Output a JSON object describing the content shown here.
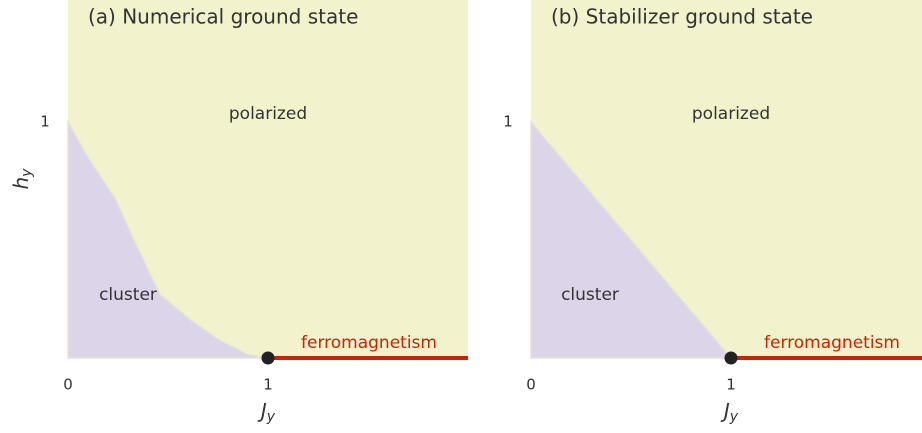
{
  "chart_data": [
    {
      "type": "phase",
      "title": "(a) Numerical ground state",
      "xlabel": "J",
      "xlabel_subscript": "y",
      "ylabel": "h",
      "ylabel_subscript": "y",
      "xlim": [
        0,
        2
      ],
      "ylim": [
        0,
        1.517
      ],
      "xticks": [
        0,
        1
      ],
      "yticks": [
        1
      ],
      "boundary": {
        "x": [
          0,
          0.1,
          0.24,
          0.33,
          0.46,
          0.6,
          0.75,
          0.9,
          1
        ],
        "y": [
          1,
          0.85,
          0.67,
          0.5,
          0.27,
          0.17,
          0.08,
          0.015,
          0
        ]
      },
      "regions": [
        {
          "label": "polarized",
          "color": "#f2f2cc"
        },
        {
          "label": "cluster",
          "color": "#dcd4e8"
        }
      ],
      "line": {
        "label": "ferromagnetism",
        "x": [
          1,
          2
        ],
        "y": [
          0,
          0
        ],
        "color": "#cc2200"
      },
      "point": {
        "x": 1,
        "y": 0,
        "color": "#222222"
      }
    },
    {
      "type": "phase",
      "title": "(b) Stabilizer ground state",
      "xlabel": "J",
      "xlabel_subscript": "y",
      "xlim": [
        0,
        1.955
      ],
      "ylim": [
        0,
        1.517
      ],
      "xticks": [
        0,
        1
      ],
      "yticks": [
        1
      ],
      "boundary": {
        "x": [
          0,
          1
        ],
        "y": [
          1,
          0
        ]
      },
      "regions": [
        {
          "label": "polarized",
          "color": "#f2f2cc"
        },
        {
          "label": "cluster",
          "color": "#dcd4e8"
        }
      ],
      "line": {
        "label": "ferromagnetism",
        "x": [
          1,
          1.955
        ],
        "y": [
          0,
          0
        ],
        "color": "#cc2200"
      },
      "point": {
        "x": 1,
        "y": 0,
        "color": "#222222"
      }
    }
  ]
}
